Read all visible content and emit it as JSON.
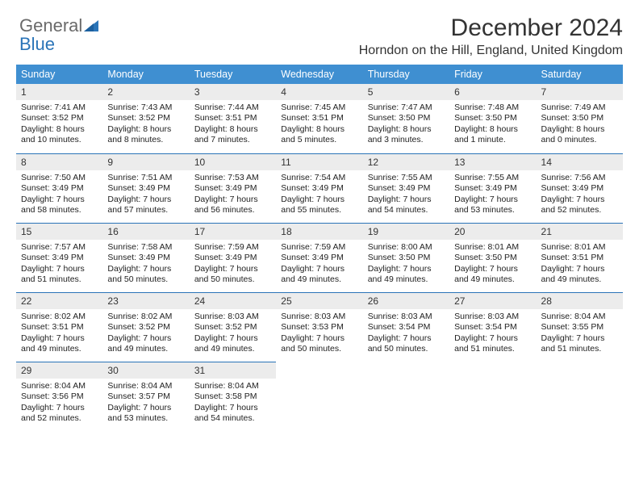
{
  "brand": {
    "name_part1": "General",
    "name_part2": "Blue",
    "accent": "#2a74b8"
  },
  "title": "December 2024",
  "location": "Horndon on the Hill, England, United Kingdom",
  "weekday_header_bg": "#3f8fd1",
  "daynum_bg": "#ececec",
  "divider_color": "#2a74b8",
  "weekdays": [
    "Sunday",
    "Monday",
    "Tuesday",
    "Wednesday",
    "Thursday",
    "Friday",
    "Saturday"
  ],
  "weeks": [
    [
      {
        "n": "1",
        "sunrise": "Sunrise: 7:41 AM",
        "sunset": "Sunset: 3:52 PM",
        "day": "Daylight: 8 hours and 10 minutes."
      },
      {
        "n": "2",
        "sunrise": "Sunrise: 7:43 AM",
        "sunset": "Sunset: 3:52 PM",
        "day": "Daylight: 8 hours and 8 minutes."
      },
      {
        "n": "3",
        "sunrise": "Sunrise: 7:44 AM",
        "sunset": "Sunset: 3:51 PM",
        "day": "Daylight: 8 hours and 7 minutes."
      },
      {
        "n": "4",
        "sunrise": "Sunrise: 7:45 AM",
        "sunset": "Sunset: 3:51 PM",
        "day": "Daylight: 8 hours and 5 minutes."
      },
      {
        "n": "5",
        "sunrise": "Sunrise: 7:47 AM",
        "sunset": "Sunset: 3:50 PM",
        "day": "Daylight: 8 hours and 3 minutes."
      },
      {
        "n": "6",
        "sunrise": "Sunrise: 7:48 AM",
        "sunset": "Sunset: 3:50 PM",
        "day": "Daylight: 8 hours and 1 minute."
      },
      {
        "n": "7",
        "sunrise": "Sunrise: 7:49 AM",
        "sunset": "Sunset: 3:50 PM",
        "day": "Daylight: 8 hours and 0 minutes."
      }
    ],
    [
      {
        "n": "8",
        "sunrise": "Sunrise: 7:50 AM",
        "sunset": "Sunset: 3:49 PM",
        "day": "Daylight: 7 hours and 58 minutes."
      },
      {
        "n": "9",
        "sunrise": "Sunrise: 7:51 AM",
        "sunset": "Sunset: 3:49 PM",
        "day": "Daylight: 7 hours and 57 minutes."
      },
      {
        "n": "10",
        "sunrise": "Sunrise: 7:53 AM",
        "sunset": "Sunset: 3:49 PM",
        "day": "Daylight: 7 hours and 56 minutes."
      },
      {
        "n": "11",
        "sunrise": "Sunrise: 7:54 AM",
        "sunset": "Sunset: 3:49 PM",
        "day": "Daylight: 7 hours and 55 minutes."
      },
      {
        "n": "12",
        "sunrise": "Sunrise: 7:55 AM",
        "sunset": "Sunset: 3:49 PM",
        "day": "Daylight: 7 hours and 54 minutes."
      },
      {
        "n": "13",
        "sunrise": "Sunrise: 7:55 AM",
        "sunset": "Sunset: 3:49 PM",
        "day": "Daylight: 7 hours and 53 minutes."
      },
      {
        "n": "14",
        "sunrise": "Sunrise: 7:56 AM",
        "sunset": "Sunset: 3:49 PM",
        "day": "Daylight: 7 hours and 52 minutes."
      }
    ],
    [
      {
        "n": "15",
        "sunrise": "Sunrise: 7:57 AM",
        "sunset": "Sunset: 3:49 PM",
        "day": "Daylight: 7 hours and 51 minutes."
      },
      {
        "n": "16",
        "sunrise": "Sunrise: 7:58 AM",
        "sunset": "Sunset: 3:49 PM",
        "day": "Daylight: 7 hours and 50 minutes."
      },
      {
        "n": "17",
        "sunrise": "Sunrise: 7:59 AM",
        "sunset": "Sunset: 3:49 PM",
        "day": "Daylight: 7 hours and 50 minutes."
      },
      {
        "n": "18",
        "sunrise": "Sunrise: 7:59 AM",
        "sunset": "Sunset: 3:49 PM",
        "day": "Daylight: 7 hours and 49 minutes."
      },
      {
        "n": "19",
        "sunrise": "Sunrise: 8:00 AM",
        "sunset": "Sunset: 3:50 PM",
        "day": "Daylight: 7 hours and 49 minutes."
      },
      {
        "n": "20",
        "sunrise": "Sunrise: 8:01 AM",
        "sunset": "Sunset: 3:50 PM",
        "day": "Daylight: 7 hours and 49 minutes."
      },
      {
        "n": "21",
        "sunrise": "Sunrise: 8:01 AM",
        "sunset": "Sunset: 3:51 PM",
        "day": "Daylight: 7 hours and 49 minutes."
      }
    ],
    [
      {
        "n": "22",
        "sunrise": "Sunrise: 8:02 AM",
        "sunset": "Sunset: 3:51 PM",
        "day": "Daylight: 7 hours and 49 minutes."
      },
      {
        "n": "23",
        "sunrise": "Sunrise: 8:02 AM",
        "sunset": "Sunset: 3:52 PM",
        "day": "Daylight: 7 hours and 49 minutes."
      },
      {
        "n": "24",
        "sunrise": "Sunrise: 8:03 AM",
        "sunset": "Sunset: 3:52 PM",
        "day": "Daylight: 7 hours and 49 minutes."
      },
      {
        "n": "25",
        "sunrise": "Sunrise: 8:03 AM",
        "sunset": "Sunset: 3:53 PM",
        "day": "Daylight: 7 hours and 50 minutes."
      },
      {
        "n": "26",
        "sunrise": "Sunrise: 8:03 AM",
        "sunset": "Sunset: 3:54 PM",
        "day": "Daylight: 7 hours and 50 minutes."
      },
      {
        "n": "27",
        "sunrise": "Sunrise: 8:03 AM",
        "sunset": "Sunset: 3:54 PM",
        "day": "Daylight: 7 hours and 51 minutes."
      },
      {
        "n": "28",
        "sunrise": "Sunrise: 8:04 AM",
        "sunset": "Sunset: 3:55 PM",
        "day": "Daylight: 7 hours and 51 minutes."
      }
    ],
    [
      {
        "n": "29",
        "sunrise": "Sunrise: 8:04 AM",
        "sunset": "Sunset: 3:56 PM",
        "day": "Daylight: 7 hours and 52 minutes."
      },
      {
        "n": "30",
        "sunrise": "Sunrise: 8:04 AM",
        "sunset": "Sunset: 3:57 PM",
        "day": "Daylight: 7 hours and 53 minutes."
      },
      {
        "n": "31",
        "sunrise": "Sunrise: 8:04 AM",
        "sunset": "Sunset: 3:58 PM",
        "day": "Daylight: 7 hours and 54 minutes."
      },
      null,
      null,
      null,
      null
    ]
  ]
}
